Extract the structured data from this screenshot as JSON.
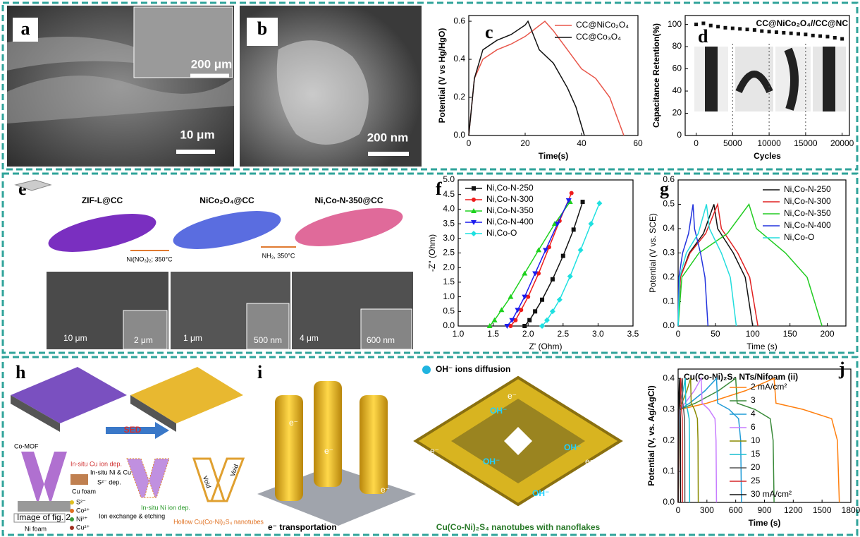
{
  "panels": {
    "a": {
      "label": "a",
      "scale_bars": [
        "200 μm",
        "10 μm"
      ]
    },
    "b": {
      "label": "b",
      "scale_bar": "200 nm"
    },
    "c": {
      "label": "c"
    },
    "d": {
      "label": "d"
    },
    "e": {
      "label": "e",
      "steps": [
        "ZIF-L@CC",
        "NiCo₂O₄@CC",
        "Ni,Co-N-350@CC"
      ],
      "conditions": [
        "Ni(NO₃)₂; 350°C",
        "NH₃, 350°C"
      ],
      "scale_bars": [
        "10 μm",
        "2 μm",
        "1 μm",
        "500 nm",
        "4 μm",
        "600 nm"
      ]
    },
    "f": {
      "label": "f"
    },
    "g": {
      "label": "g"
    },
    "h": {
      "label": "h",
      "arrow": "SED",
      "mof": "Co-MOF",
      "cu_foam": "Cu foam",
      "ni_foam": "Ni foam",
      "image_note": "Image of fig. 2",
      "steps": [
        "In-situ Cu ion dep.",
        "In-situ Ni & Cu dep.",
        "S²⁻ dep.",
        "Ion exchange & etching",
        "In-situ Ni ion dep."
      ],
      "voids": [
        "Void",
        "Void"
      ],
      "product": "Hollow Cu(Co-Ni)₂S₄ nanotubes",
      "ions": [
        "S²⁻",
        "Co²⁺",
        "Ni²⁺",
        "Cu²⁺"
      ]
    },
    "i": {
      "label": "i",
      "top": "OH⁻ ions diffusion",
      "bottom": "e⁻ transportation",
      "caption": "Cu(Co-Ni)₂S₄ nanotubes with nanoflakes",
      "ion_labels": [
        "OH⁻",
        "OH⁻",
        "OH⁻",
        "OH⁻"
      ],
      "electron_labels": [
        "e⁻",
        "e⁻",
        "e⁻",
        "e⁻",
        "e⁻",
        "e⁻"
      ]
    },
    "j": {
      "label": "j"
    }
  },
  "chart_data": [
    {
      "type": "line",
      "xlabel": "Time(s)",
      "ylabel": "Potential (V vs Hg/HgO)",
      "xlim": [
        0,
        60
      ],
      "xticks": [
        0,
        20,
        40,
        60
      ],
      "ylim": [
        0,
        0.63
      ],
      "yticks": [
        {
          "value": 0,
          "label": "0.0"
        },
        0.2,
        0.4,
        0.6
      ],
      "legend": "upper right",
      "series": [
        {
          "name": "CC@NiCo₂O₄",
          "color": "#e8564a",
          "x": [
            0,
            2,
            5,
            10,
            15,
            20,
            27,
            30,
            35,
            40,
            45,
            50,
            55
          ],
          "values": [
            0,
            0.3,
            0.4,
            0.45,
            0.48,
            0.52,
            0.6,
            0.55,
            0.45,
            0.35,
            0.3,
            0.2,
            0
          ]
        },
        {
          "name": "CC@Co₃O₄",
          "color": "#111111",
          "x": [
            0,
            2,
            5,
            10,
            15,
            20,
            21,
            25,
            30,
            35,
            38,
            41
          ],
          "values": [
            0,
            0.3,
            0.45,
            0.5,
            0.53,
            0.58,
            0.6,
            0.45,
            0.38,
            0.25,
            0.15,
            0
          ]
        }
      ]
    },
    {
      "type": "scatter",
      "title": "CC@NiCo₂O₄//CC@NC",
      "xlabel": "Cycles",
      "ylabel": "Capacitance Retention(%)",
      "xlim": [
        -1500,
        21000
      ],
      "xticks": [
        0,
        5000,
        10000,
        15000,
        20000
      ],
      "ylim": [
        0,
        108
      ],
      "yticks": [
        0,
        20,
        40,
        60,
        80,
        100
      ],
      "color": "#111111",
      "dividers": [
        5000,
        10000,
        15000
      ],
      "x": [
        0,
        1000,
        2000,
        3000,
        4000,
        5000,
        6000,
        7000,
        8000,
        9000,
        10000,
        11000,
        12000,
        13000,
        14000,
        15000,
        16000,
        17000,
        18000,
        19000,
        20000
      ],
      "values": [
        100,
        101,
        99,
        98,
        97,
        96.5,
        96,
        95.5,
        95,
        94,
        93.5,
        93,
        92.5,
        92,
        91.5,
        91,
        90,
        89.5,
        89,
        88,
        87
      ]
    },
    {
      "type": "line",
      "markers": true,
      "xlabel": "Z' (Ohm)",
      "ylabel": "-Z'' (Ohm)",
      "xlim": [
        1,
        3.5
      ],
      "xticks": [
        {
          "value": 1,
          "label": "1.0"
        },
        1.5,
        {
          "value": 2,
          "label": "2.0"
        },
        2.5,
        {
          "value": 3,
          "label": "3.0"
        },
        3.5
      ],
      "ylim": [
        0,
        5
      ],
      "yticks": [
        {
          "value": 0,
          "label": "0.0"
        },
        0.5,
        {
          "value": 1,
          "label": "1.0"
        },
        1.5,
        {
          "value": 2,
          "label": "2.0"
        },
        2.5,
        {
          "value": 3,
          "label": "3.0"
        },
        3.5,
        {
          "value": 4,
          "label": "4.0"
        },
        4.5,
        {
          "value": 5,
          "label": "5.0"
        }
      ],
      "legend": "upper left",
      "series": [
        {
          "name": "Ni,Co-N-250",
          "color": "#111111",
          "marker": "square",
          "x": [
            1.95,
            2.02,
            2.1,
            2.2,
            2.35,
            2.5,
            2.65,
            2.78
          ],
          "values": [
            0,
            0.2,
            0.5,
            0.9,
            1.6,
            2.4,
            3.3,
            4.25
          ]
        },
        {
          "name": "Ni,Co-N-300",
          "color": "#ee1c1c",
          "marker": "circle",
          "x": [
            1.75,
            1.82,
            1.9,
            2.0,
            2.15,
            2.3,
            2.45,
            2.62
          ],
          "values": [
            0,
            0.2,
            0.55,
            1.0,
            1.8,
            2.7,
            3.6,
            4.55
          ]
        },
        {
          "name": "Ni,Co-N-350",
          "color": "#1ed21e",
          "marker": "triangle-up",
          "x": [
            1.45,
            1.52,
            1.62,
            1.75,
            1.95,
            2.15,
            2.38,
            2.6
          ],
          "values": [
            0,
            0.2,
            0.55,
            1.0,
            1.8,
            2.6,
            3.5,
            4.25
          ]
        },
        {
          "name": "Ni,Co-N-400",
          "color": "#1c1cee",
          "marker": "triangle-down",
          "x": [
            1.7,
            1.77,
            1.85,
            1.95,
            2.1,
            2.25,
            2.42,
            2.58
          ],
          "values": [
            0,
            0.2,
            0.55,
            1.0,
            1.8,
            2.6,
            3.5,
            4.3
          ]
        },
        {
          "name": "Ni,Co-O",
          "color": "#1ee0e0",
          "marker": "diamond",
          "x": [
            2.2,
            2.27,
            2.35,
            2.45,
            2.6,
            2.75,
            2.9,
            3.02
          ],
          "values": [
            0,
            0.2,
            0.5,
            0.9,
            1.7,
            2.6,
            3.5,
            4.2
          ]
        }
      ]
    },
    {
      "type": "line",
      "xlabel": "Time (s)",
      "ylabel": "Potential (V vs. SCE)",
      "xlim": [
        0,
        225
      ],
      "xticks": [
        0,
        50,
        100,
        150,
        200
      ],
      "ylim": [
        0,
        0.6
      ],
      "yticks": [
        {
          "value": 0,
          "label": "0.0"
        },
        0.1,
        0.2,
        0.3,
        0.4,
        0.5,
        0.6
      ],
      "legend": "upper right",
      "series": [
        {
          "name": "Ni,Co-N-250",
          "color": "#111111",
          "x": [
            0,
            3,
            15,
            34,
            48,
            53,
            74,
            90,
            100
          ],
          "values": [
            0,
            0.2,
            0.3,
            0.38,
            0.5,
            0.4,
            0.3,
            0.2,
            0
          ]
        },
        {
          "name": "Ni,Co-N-300",
          "color": "#e02020",
          "x": [
            0,
            3,
            16,
            37,
            53,
            58,
            80,
            96,
            107
          ],
          "values": [
            0,
            0.2,
            0.3,
            0.38,
            0.5,
            0.4,
            0.3,
            0.2,
            0
          ]
        },
        {
          "name": "Ni,Co-N-350",
          "color": "#22cc22",
          "x": [
            0,
            5,
            28,
            66,
            95,
            105,
            144,
            173,
            193
          ],
          "values": [
            0,
            0.2,
            0.3,
            0.38,
            0.5,
            0.4,
            0.3,
            0.2,
            0
          ]
        },
        {
          "name": "Ni,Co-N-400",
          "color": "#2233dd",
          "x": [
            0,
            1,
            6,
            14,
            20,
            22,
            30,
            36,
            40
          ],
          "values": [
            0,
            0.2,
            0.3,
            0.38,
            0.5,
            0.4,
            0.3,
            0.2,
            0
          ]
        },
        {
          "name": "Ni,Co-O",
          "color": "#22dddd",
          "x": [
            0,
            2,
            11,
            27,
            38,
            42,
            58,
            70,
            78
          ],
          "values": [
            0,
            0.2,
            0.3,
            0.38,
            0.5,
            0.4,
            0.3,
            0.2,
            0
          ]
        }
      ]
    },
    {
      "type": "line",
      "title": "Cu(Co-Ni)₂S₄ NTs/Nifoam (ii)",
      "xlabel": "Time (s)",
      "ylabel": "Potential (V, vs. Ag/AgCl)",
      "xlim": [
        0,
        1800
      ],
      "xticks": [
        0,
        300,
        600,
        900,
        1200,
        1500,
        1800
      ],
      "ylim": [
        0,
        0.43
      ],
      "yticks": [
        {
          "value": 0,
          "label": "0.0"
        },
        0.1,
        0.2,
        0.3,
        0.4
      ],
      "legend": "right",
      "series": [
        {
          "name": "2 mA/cm²",
          "color": "#ff7f0e",
          "x": [
            0,
            20,
            300,
            700,
            1000,
            1020,
            1300,
            1600,
            1660,
            1680
          ],
          "values": [
            0,
            0.3,
            0.32,
            0.36,
            0.4,
            0.32,
            0.3,
            0.27,
            0.2,
            0
          ]
        },
        {
          "name": "3",
          "color": "#3a8a3a",
          "x": [
            0,
            15,
            180,
            420,
            600,
            615,
            800,
            960,
            990,
            1000
          ],
          "values": [
            0,
            0.3,
            0.32,
            0.36,
            0.4,
            0.32,
            0.3,
            0.27,
            0.2,
            0
          ]
        },
        {
          "name": "4",
          "color": "#1f9bd6",
          "x": [
            0,
            12,
            120,
            280,
            400,
            412,
            530,
            630,
            652,
            660
          ],
          "values": [
            0,
            0.3,
            0.32,
            0.36,
            0.4,
            0.32,
            0.3,
            0.27,
            0.2,
            0
          ]
        },
        {
          "name": "6",
          "color": "#c77cff",
          "x": [
            0,
            10,
            72,
            168,
            240,
            250,
            320,
            384,
            395,
            400
          ],
          "values": [
            0,
            0.3,
            0.32,
            0.36,
            0.4,
            0.32,
            0.3,
            0.27,
            0.2,
            0
          ]
        },
        {
          "name": "10",
          "color": "#8a8a00",
          "x": [
            0,
            6,
            39,
            91,
            130,
            136,
            170,
            201,
            207,
            210
          ],
          "values": [
            0,
            0.3,
            0.32,
            0.36,
            0.4,
            0.32,
            0.3,
            0.27,
            0.2,
            0
          ]
        },
        {
          "name": "15",
          "color": "#17becf",
          "x": [
            0,
            4,
            22,
            52,
            75,
            79,
            97,
            115,
            118,
            120
          ],
          "values": [
            0,
            0.3,
            0.32,
            0.36,
            0.4,
            0.32,
            0.3,
            0.27,
            0.2,
            0
          ]
        },
        {
          "name": "20",
          "color": "#555555",
          "x": [
            0,
            3,
            13,
            31,
            45,
            48,
            57,
            67,
            69,
            70
          ],
          "values": [
            0,
            0.3,
            0.32,
            0.36,
            0.4,
            0.32,
            0.3,
            0.27,
            0.2,
            0
          ]
        },
        {
          "name": "25",
          "color": "#d62728",
          "x": [
            0,
            2,
            8,
            20,
            28,
            30,
            36,
            43,
            44,
            45
          ],
          "values": [
            0,
            0.3,
            0.32,
            0.36,
            0.4,
            0.32,
            0.3,
            0.27,
            0.2,
            0
          ]
        },
        {
          "name": "30 mA/cm²",
          "color": "#111111",
          "x": [
            0,
            1,
            4,
            10,
            15,
            16,
            20,
            23,
            24,
            25
          ],
          "values": [
            0,
            0.3,
            0.32,
            0.36,
            0.4,
            0.32,
            0.3,
            0.27,
            0.2,
            0
          ]
        }
      ]
    }
  ]
}
